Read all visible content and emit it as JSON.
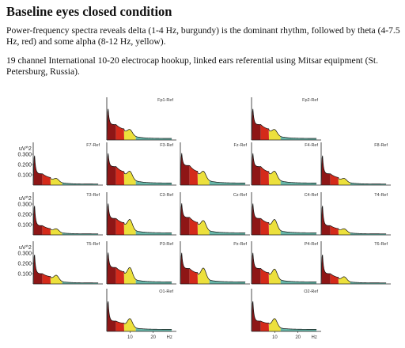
{
  "heading": "Baseline eyes closed condition",
  "paragraphs": [
    "Power-frequency spectra reveals delta (1-4 Hz, burgundy) is the dominant rhythm, followed by theta (4-7.5 Hz, red) and some alpha (8-12 Hz, yellow).",
    "19 channel International 10-20 electrocap hookup, linked ears referential using Mitsar equipment (St. Petersburg, Russia)."
  ],
  "colors": {
    "delta": "#8e1616",
    "theta": "#d42a1a",
    "alpha": "#ece03c",
    "beta": "#67b6a8",
    "line": "#111111"
  },
  "chart_data": {
    "type": "area",
    "layout": "10-20 scalp montage",
    "y_axis_label": "uV^2",
    "y_ticks": [
      "0.300",
      "0.200",
      "0.100"
    ],
    "x_ticks": [
      "10",
      "20",
      "Hz"
    ],
    "xlim": [
      0,
      30
    ],
    "ylim": [
      0,
      0.4
    ],
    "bands": [
      {
        "range": [
          1,
          4
        ],
        "color": "burgundy"
      },
      {
        "range": [
          4,
          7.5
        ],
        "color": "red"
      },
      {
        "range": [
          8,
          12
        ],
        "color": "yellow"
      }
    ],
    "channels": [
      {
        "label": "Fp1-Ref",
        "row": 0,
        "col": 1,
        "peak": 0.34,
        "delta": 0.15,
        "theta": 0.09,
        "alpha": 0.05,
        "beta": 0.015
      },
      {
        "label": "Fp2-Ref",
        "row": 0,
        "col": 3,
        "peak": 0.34,
        "delta": 0.15,
        "theta": 0.09,
        "alpha": 0.05,
        "beta": 0.015
      },
      {
        "label": "F7-Ref",
        "row": 1,
        "col": 0,
        "peak": 0.33,
        "delta": 0.11,
        "theta": 0.06,
        "alpha": 0.03,
        "beta": 0.01
      },
      {
        "label": "F3-Ref",
        "row": 1,
        "col": 1,
        "peak": 0.34,
        "delta": 0.18,
        "theta": 0.11,
        "alpha": 0.07,
        "beta": 0.02
      },
      {
        "label": "Fz-Ref",
        "row": 1,
        "col": 2,
        "peak": 0.34,
        "delta": 0.19,
        "theta": 0.11,
        "alpha": 0.07,
        "beta": 0.02
      },
      {
        "label": "F4-Ref",
        "row": 1,
        "col": 3,
        "peak": 0.34,
        "delta": 0.18,
        "theta": 0.11,
        "alpha": 0.07,
        "beta": 0.02
      },
      {
        "label": "F8-Ref",
        "row": 1,
        "col": 4,
        "peak": 0.33,
        "delta": 0.11,
        "theta": 0.06,
        "alpha": 0.03,
        "beta": 0.01
      },
      {
        "label": "T3-Ref",
        "row": 2,
        "col": 0,
        "peak": 0.33,
        "delta": 0.09,
        "theta": 0.05,
        "alpha": 0.03,
        "beta": 0.01
      },
      {
        "label": "C3-Ref",
        "row": 2,
        "col": 1,
        "peak": 0.34,
        "delta": 0.16,
        "theta": 0.1,
        "alpha": 0.09,
        "beta": 0.02
      },
      {
        "label": "Cz-Ref",
        "row": 2,
        "col": 2,
        "peak": 0.34,
        "delta": 0.17,
        "theta": 0.1,
        "alpha": 0.08,
        "beta": 0.02
      },
      {
        "label": "C4-Ref",
        "row": 2,
        "col": 3,
        "peak": 0.34,
        "delta": 0.16,
        "theta": 0.1,
        "alpha": 0.09,
        "beta": 0.02
      },
      {
        "label": "T4-Ref",
        "row": 2,
        "col": 4,
        "peak": 0.33,
        "delta": 0.09,
        "theta": 0.05,
        "alpha": 0.03,
        "beta": 0.01
      },
      {
        "label": "T5-Ref",
        "row": 3,
        "col": 0,
        "peak": 0.33,
        "delta": 0.1,
        "theta": 0.06,
        "alpha": 0.05,
        "beta": 0.01
      },
      {
        "label": "P3-Ref",
        "row": 3,
        "col": 1,
        "peak": 0.34,
        "delta": 0.16,
        "theta": 0.1,
        "alpha": 0.1,
        "beta": 0.02
      },
      {
        "label": "Pz-Ref",
        "row": 3,
        "col": 2,
        "peak": 0.34,
        "delta": 0.15,
        "theta": 0.09,
        "alpha": 0.1,
        "beta": 0.02
      },
      {
        "label": "P4-Ref",
        "row": 3,
        "col": 3,
        "peak": 0.34,
        "delta": 0.15,
        "theta": 0.09,
        "alpha": 0.09,
        "beta": 0.02
      },
      {
        "label": "T6-Ref",
        "row": 3,
        "col": 4,
        "peak": 0.33,
        "delta": 0.1,
        "theta": 0.05,
        "alpha": 0.04,
        "beta": 0.01
      },
      {
        "label": "O1-Ref",
        "row": 4,
        "col": 1,
        "peak": 0.34,
        "delta": 0.1,
        "theta": 0.07,
        "alpha": 0.08,
        "beta": 0.02
      },
      {
        "label": "O2-Ref",
        "row": 4,
        "col": 3,
        "peak": 0.34,
        "delta": 0.1,
        "theta": 0.07,
        "alpha": 0.08,
        "beta": 0.02
      }
    ]
  }
}
